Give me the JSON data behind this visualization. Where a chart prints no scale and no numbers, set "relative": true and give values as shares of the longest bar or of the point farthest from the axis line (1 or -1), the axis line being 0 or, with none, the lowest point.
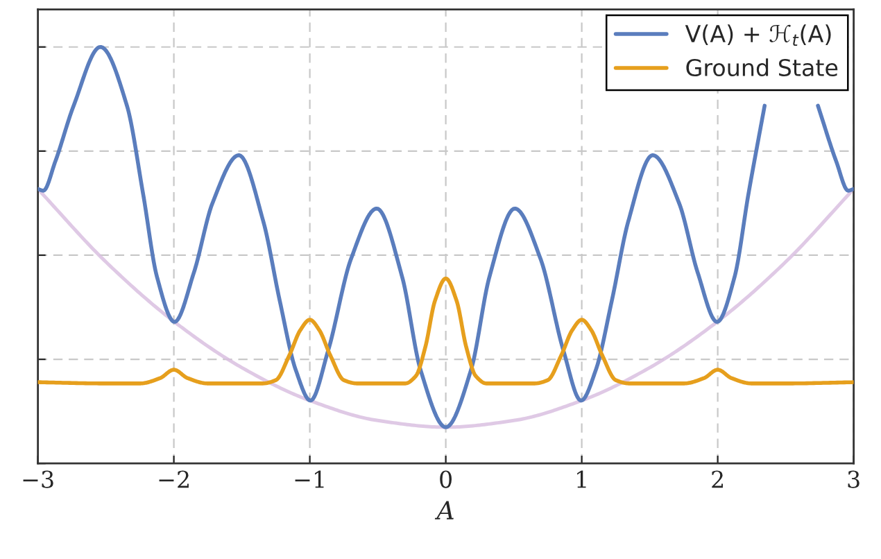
{
  "chart_data": {
    "type": "line",
    "relative": true,
    "xlabel": "A",
    "xlim": [
      -3,
      3
    ],
    "xticks": [
      {
        "value": -3,
        "label": "−3"
      },
      {
        "value": -2,
        "label": "−2"
      },
      {
        "value": -1,
        "label": "−1"
      },
      0,
      1,
      2,
      3
    ],
    "grid": true,
    "legend": "top right",
    "tick_labels": "x",
    "line_style": "solid",
    "marker": "none",
    "series": [
      {
        "name": "V(A) + ℋ$_{t}$(A)",
        "color": "#5a7dbd",
        "x": [
          -3,
          -2.96,
          -2.872,
          -2.737,
          -2.54,
          -2.345,
          -2.226,
          -2.124,
          -1.995,
          -1.852,
          -1.716,
          -1.522,
          -1.342,
          -1.222,
          -1.104,
          -0.995,
          -0.866,
          -0.696,
          -0.508,
          -0.321,
          -0.186,
          0,
          0.186,
          0.321,
          0.508,
          0.696,
          0.866,
          0.995,
          1.104,
          1.222,
          1.342,
          1.522,
          1.716,
          1.852,
          1.995,
          2.124,
          2.226,
          2.345,
          2.54,
          2.737,
          2.872,
          2.96,
          3
        ],
        "values": [
          0.659,
          0.655,
          0.725,
          0.859,
          1.0,
          0.859,
          0.647,
          0.448,
          0.34,
          0.459,
          0.625,
          0.74,
          0.581,
          0.392,
          0.225,
          0.151,
          0.27,
          0.492,
          0.612,
          0.448,
          0.225,
          0.087,
          0.225,
          0.448,
          0.612,
          0.492,
          0.27,
          0.151,
          0.225,
          0.392,
          0.581,
          0.74,
          0.625,
          0.459,
          0.34,
          0.448,
          0.647,
          0.859,
          null,
          0.859,
          0.725,
          0.655,
          0.659
        ]
      },
      {
        "name": "Ground State",
        "color": "#e69f1d",
        "x": [
          -3,
          -2.5,
          -2.25,
          -2.1,
          -2,
          -1.9,
          -1.75,
          -1.35,
          -1.25,
          -1.15,
          -1.07,
          -1,
          -0.93,
          -0.85,
          -0.75,
          -0.65,
          -0.3,
          -0.22,
          -0.15,
          -0.08,
          0,
          0.08,
          0.15,
          0.22,
          0.3,
          0.65,
          0.75,
          0.85,
          0.93,
          1,
          1.07,
          1.15,
          1.25,
          1.35,
          1.75,
          1.9,
          2,
          2.1,
          2.25,
          2.5,
          3
        ],
        "values": [
          0.195,
          0.192,
          0.192,
          0.205,
          0.225,
          0.205,
          0.192,
          0.192,
          0.2,
          0.26,
          0.32,
          0.345,
          0.32,
          0.26,
          0.2,
          0.192,
          0.192,
          0.21,
          0.28,
          0.39,
          0.444,
          0.39,
          0.28,
          0.21,
          0.192,
          0.192,
          0.2,
          0.26,
          0.32,
          0.345,
          0.32,
          0.26,
          0.2,
          0.192,
          0.192,
          0.205,
          0.225,
          0.205,
          0.192,
          0.192,
          0.195
        ]
      },
      {
        "color": "#d9c0e0",
        "x": [
          -3,
          -2.5,
          -2,
          -1.5,
          -1,
          -0.5,
          0,
          0.5,
          1,
          1.5,
          2,
          2.5,
          3
        ],
        "values": [
          0.659,
          0.484,
          0.341,
          0.23,
          0.151,
          0.103,
          0.087,
          0.103,
          0.151,
          0.23,
          0.341,
          0.484,
          0.659
        ]
      }
    ]
  }
}
